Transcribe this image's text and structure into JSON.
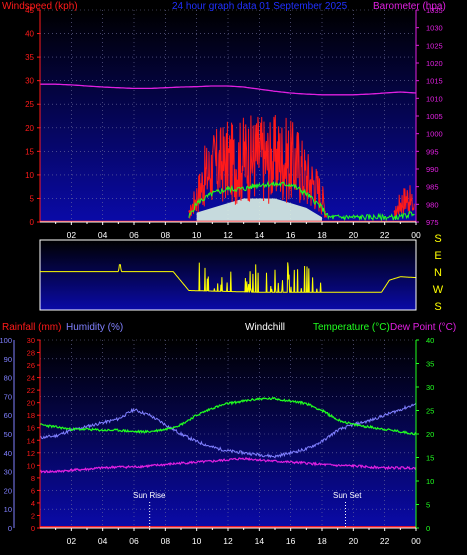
{
  "header": {
    "wind_label": "Windspeed (kph)",
    "title": "24 hour graph data 01 September 2025",
    "baro_label": "Barometer (hpa)"
  },
  "lower_header": {
    "rain_label": "Rainfall (mm)",
    "humidity_label": "Humidity (%)",
    "windchill_label": "Windchill",
    "temp_label": "Temperature (°C)",
    "dew_label": "Dew Point (°C)"
  },
  "sun": {
    "rise_label": "Sun Rise",
    "set_label": "Sun Set"
  },
  "colors": {
    "background": "#000000",
    "plot_bg_top": "#000040",
    "plot_bg_bottom": "#0a0aa8",
    "wind": "#ff1a1a",
    "barometer": "#e020e0",
    "windgust": "#ffffff",
    "avgwind": "#20ff20",
    "direction": "#ffff00",
    "humidity": "#8080ff",
    "temperature": "#20ff20",
    "dewpoint": "#e020e0",
    "rainfall": "#ff1a1a",
    "title": "#2030ff"
  },
  "chart_data": [
    {
      "type": "line",
      "title": "24 hour graph data 01 September 2025",
      "x_ticks": [
        "02",
        "04",
        "06",
        "08",
        "10",
        "12",
        "14",
        "16",
        "18",
        "20",
        "22",
        "00"
      ],
      "y_left": {
        "label": "Windspeed (kph)",
        "ticks": [
          0,
          5,
          10,
          15,
          20,
          25,
          30,
          35,
          40,
          45
        ],
        "range": [
          0,
          45
        ]
      },
      "y_right": {
        "label": "Barometer (hpa)",
        "ticks": [
          975,
          980,
          985,
          990,
          995,
          1000,
          1005,
          1010,
          1015,
          1020,
          1025,
          1030,
          1035
        ],
        "range": [
          975,
          1035
        ]
      },
      "series": [
        {
          "name": "Barometer",
          "axis": "right",
          "x": [
            0,
            1,
            2,
            3,
            4,
            5,
            6,
            7,
            8,
            9,
            10,
            11,
            12,
            13,
            14,
            15,
            16,
            17,
            18,
            19,
            20,
            21,
            22,
            23,
            24
          ],
          "values": [
            1014,
            1014,
            1013.8,
            1013.5,
            1013.2,
            1013,
            1012.8,
            1012.8,
            1013,
            1013.2,
            1013.3,
            1013.5,
            1013.5,
            1013.2,
            1012.6,
            1012,
            1011.5,
            1011.2,
            1011,
            1011,
            1011,
            1011.2,
            1011.5,
            1011.8,
            1011.5
          ]
        },
        {
          "name": "Windspeed",
          "axis": "left",
          "x": [
            9.5,
            10,
            10.5,
            11,
            11.5,
            12,
            12.5,
            13,
            13.5,
            14,
            14.5,
            15,
            15.5,
            16,
            16.5,
            17,
            17.5,
            18,
            18.3,
            22.6,
            23,
            23.5,
            23.9
          ],
          "values": [
            2,
            8,
            14,
            17,
            18,
            19,
            18,
            20,
            20,
            21,
            19,
            20,
            20,
            19,
            18,
            14,
            12,
            8,
            2,
            2,
            6,
            8,
            4
          ]
        },
        {
          "name": "Average Windspeed",
          "axis": "left",
          "x": [
            9.5,
            10,
            11,
            12,
            13,
            14,
            15,
            16,
            17,
            18,
            18.4,
            23,
            23.9
          ],
          "values": [
            1,
            4,
            6,
            7,
            7,
            8,
            8,
            8,
            6,
            3,
            1,
            1,
            2
          ]
        },
        {
          "name": "Wind Gust",
          "axis": "left",
          "x": [
            10,
            11,
            12,
            13,
            14,
            15,
            16,
            17,
            18
          ],
          "values": [
            2,
            3,
            4,
            5,
            5,
            5,
            4,
            3,
            1
          ]
        }
      ]
    },
    {
      "type": "line",
      "y_right": {
        "labels": [
          "S",
          "E",
          "N",
          "W",
          "S"
        ]
      },
      "series": [
        {
          "name": "Wind Direction",
          "x": [
            0,
            5,
            5.1,
            5.2,
            8.5,
            9.5,
            14,
            18,
            20,
            21.8,
            22.3,
            23,
            24
          ],
          "values": [
            200,
            200,
            250,
            200,
            200,
            90,
            80,
            80,
            80,
            80,
            150,
            170,
            165
          ]
        }
      ]
    },
    {
      "type": "line",
      "x_ticks": [
        "02",
        "04",
        "06",
        "08",
        "10",
        "12",
        "14",
        "16",
        "18",
        "20",
        "22",
        "00"
      ],
      "y_left_humidity": {
        "label": "Humidity (%)",
        "ticks": [
          0,
          10,
          20,
          30,
          40,
          50,
          60,
          70,
          80,
          90,
          100
        ],
        "range": [
          0,
          100
        ]
      },
      "y_left_rain": {
        "label": "Rainfall (mm)",
        "ticks": [
          0,
          2,
          4,
          6,
          8,
          10,
          12,
          14,
          16,
          18,
          20,
          22,
          24,
          26,
          28,
          30
        ],
        "range": [
          0,
          30
        ]
      },
      "y_right": {
        "label": "Temperature (°C)",
        "ticks": [
          0,
          5,
          10,
          15,
          20,
          25,
          30,
          35,
          40
        ],
        "range": [
          0,
          40
        ]
      },
      "annotations": [
        {
          "text": "Sun Rise",
          "x": 7
        },
        {
          "text": "Sun Set",
          "x": 19.5
        }
      ],
      "series": [
        {
          "name": "Humidity",
          "axis": "humidity",
          "x": [
            0,
            1,
            2,
            3,
            4,
            5,
            6,
            7,
            8,
            9,
            10,
            11,
            12,
            13,
            14,
            15,
            16,
            17,
            18,
            19,
            20,
            21,
            22,
            23,
            24
          ],
          "values": [
            48,
            49,
            52,
            54,
            56,
            58,
            63,
            60,
            55,
            50,
            46,
            43,
            41,
            40,
            39,
            38,
            40,
            42,
            46,
            52,
            55,
            57,
            60,
            63,
            66
          ]
        },
        {
          "name": "Temperature",
          "axis": "right",
          "x": [
            0,
            1,
            2,
            3,
            4,
            5,
            6,
            7,
            8,
            9,
            10,
            11,
            12,
            13,
            14,
            15,
            16,
            17,
            18,
            19,
            20,
            21,
            22,
            23,
            24
          ],
          "values": [
            22,
            21.5,
            21,
            21,
            20.8,
            20.8,
            20.5,
            20.5,
            21,
            22,
            24,
            25.5,
            26.5,
            27,
            27.5,
            27.5,
            27,
            26.5,
            25,
            23,
            22,
            21.5,
            21,
            20.5,
            20
          ]
        },
        {
          "name": "Dew Point",
          "axis": "right",
          "x": [
            0,
            1,
            2,
            3,
            4,
            5,
            6,
            7,
            8,
            9,
            10,
            11,
            12,
            13,
            14,
            15,
            16,
            17,
            18,
            19,
            20,
            21,
            22,
            23,
            24
          ],
          "values": [
            12,
            12,
            12.3,
            12.5,
            12.8,
            13,
            13,
            13.2,
            13.5,
            13.8,
            14,
            14.2,
            14.5,
            14.8,
            14.5,
            14.2,
            14,
            13.8,
            13.5,
            13.3,
            13.2,
            13,
            12.8,
            12.8,
            12.8
          ]
        },
        {
          "name": "Rainfall",
          "axis": "rain",
          "x": [
            0,
            24
          ],
          "values": [
            0,
            0
          ]
        }
      ]
    }
  ]
}
